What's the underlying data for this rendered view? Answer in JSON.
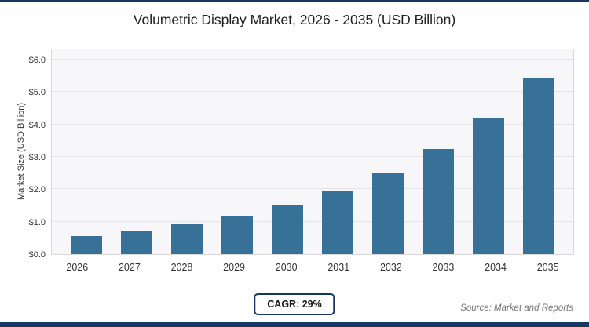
{
  "title": "Volumetric Display Market, 2026 - 2035 (USD Billion)",
  "footer": {
    "cagr_label": "CAGR: 29%",
    "source": "Source: Market and Reports"
  },
  "colors": {
    "bar": "#377198",
    "accent_dark": "#17375e",
    "plot_bg": "#f7f7f9",
    "grid": "#e5e5e5"
  },
  "chart_data": {
    "type": "bar",
    "title": "Volumetric Display Market, 2026 - 2035 (USD Billion)",
    "categories": [
      "2026",
      "2027",
      "2028",
      "2029",
      "2030",
      "2031",
      "2032",
      "2033",
      "2034",
      "2035"
    ],
    "values": [
      0.55,
      0.7,
      0.91,
      1.17,
      1.51,
      1.95,
      2.52,
      3.25,
      4.2,
      5.42
    ],
    "xlabel": "",
    "ylabel": "Market Size (USD Billion)",
    "ylim": [
      0,
      6
    ],
    "ytick_step": 1,
    "yticks": [
      "$0.0",
      "$1.0",
      "$2.0",
      "$3.0",
      "$4.0",
      "$5.0",
      "$6.0"
    ],
    "grid": true,
    "legend": false
  }
}
